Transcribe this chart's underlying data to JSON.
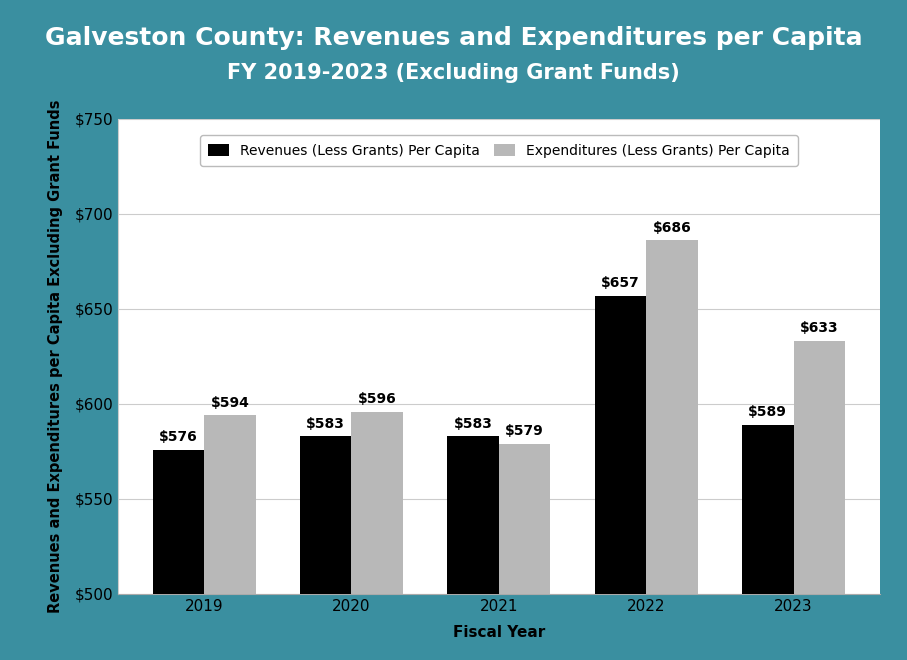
{
  "title_line1": "Galveston County: Revenues and Expenditures per Capita",
  "title_line2": "FY 2019-2023 (Excluding Grant Funds)",
  "years": [
    "2019",
    "2020",
    "2021",
    "2022",
    "2023"
  ],
  "revenues": [
    576,
    583,
    583,
    657,
    589
  ],
  "expenditures": [
    594,
    596,
    579,
    686,
    633
  ],
  "revenue_color": "#000000",
  "expenditure_color": "#b8b8b8",
  "background_color": "#3a8fa0",
  "plot_bg_color": "#ffffff",
  "xlabel": "Fiscal Year",
  "ylabel": "Revenues and Expenditures per Capita Excluding Grant Funds",
  "ylim_min": 500,
  "ylim_max": 750,
  "yticks": [
    500,
    550,
    600,
    650,
    700,
    750
  ],
  "legend_revenue": "Revenues (Less Grants) Per Capita",
  "legend_expenditure": "Expenditures (Less Grants) Per Capita",
  "bar_width": 0.35,
  "title_fontsize": 18,
  "subtitle_fontsize": 15,
  "axis_label_fontsize": 11,
  "tick_fontsize": 11,
  "annotation_fontsize": 10,
  "legend_fontsize": 10
}
